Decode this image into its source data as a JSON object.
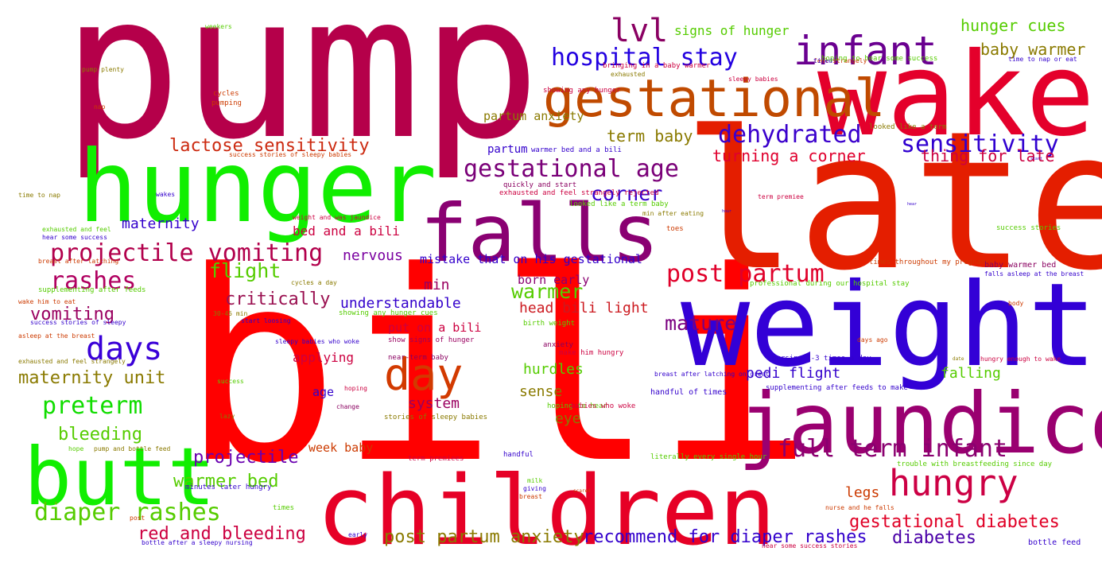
{
  "words": [
    {
      "text": "bili",
      "color": "#ff0000"
    },
    {
      "text": "pump",
      "color": "#b5004a"
    },
    {
      "text": "late",
      "color": "#e41e00"
    },
    {
      "text": "wake",
      "color": "#e4002b"
    },
    {
      "text": "weight",
      "color": "#3300d6"
    },
    {
      "text": "hunger",
      "color": "#11ee00"
    },
    {
      "text": "children",
      "color": "#e60026"
    },
    {
      "text": "jaundice",
      "color": "#9a0070"
    },
    {
      "text": "butt",
      "color": "#11ee00"
    },
    {
      "text": "falls",
      "color": "#8a0072"
    },
    {
      "text": "gestational",
      "color": "#c04a00"
    },
    {
      "text": "infant",
      "color": "#6a0090"
    },
    {
      "text": "day",
      "color": "#d23a00"
    },
    {
      "text": "days",
      "color": "#3a00d8"
    },
    {
      "text": "hungry",
      "color": "#cc0044"
    },
    {
      "text": "lvl",
      "color": "#8a0062"
    },
    {
      "text": "hospital stay",
      "color": "#2200e0"
    },
    {
      "text": "gestational age",
      "color": "#7a0078"
    },
    {
      "text": "dehydrated",
      "color": "#3a00cc"
    },
    {
      "text": "sensitivity",
      "color": "#3000d0"
    },
    {
      "text": "projectile vomiting",
      "color": "#b2004c"
    },
    {
      "text": "post partum",
      "color": "#e0002a"
    },
    {
      "text": "full term infant",
      "color": "#8a0070"
    },
    {
      "text": "diaper rashes",
      "color": "#55cc00"
    },
    {
      "text": "rashes",
      "color": "#b00060"
    },
    {
      "text": "preterm",
      "color": "#11dd00"
    },
    {
      "text": "corner",
      "color": "#3300cc"
    },
    {
      "text": "flight",
      "color": "#55cc00"
    },
    {
      "text": "mature",
      "color": "#7a0080"
    },
    {
      "text": "warmer",
      "color": "#55cc00"
    },
    {
      "text": "critically",
      "color": "#9a1050"
    },
    {
      "text": "gestational diabetes",
      "color": "#e00026"
    },
    {
      "text": "red and bleeding",
      "color": "#cc0040"
    },
    {
      "text": "diabetes",
      "color": "#4a00a8"
    },
    {
      "text": "maternity unit",
      "color": "#8a7a00"
    },
    {
      "text": "vomiting",
      "color": "#9a0060"
    },
    {
      "text": "bleeding",
      "color": "#55cc00"
    },
    {
      "text": "projectile",
      "color": "#6a00b0"
    },
    {
      "text": "warmer bed",
      "color": "#55cc00"
    },
    {
      "text": "post partum anxiety",
      "color": "#8a7a00"
    },
    {
      "text": "recommend for diaper rashes",
      "color": "#3300cc"
    },
    {
      "text": "lactose sensitivity",
      "color": "#cc2a10"
    },
    {
      "text": "term baby",
      "color": "#8a7a00"
    },
    {
      "text": "turning a corner",
      "color": "#e0002e"
    },
    {
      "text": "thing for late",
      "color": "#cc0040"
    },
    {
      "text": "hunger cues",
      "color": "#55cc00"
    },
    {
      "text": "baby warmer",
      "color": "#8a7a00"
    },
    {
      "text": "signs of hunger",
      "color": "#55cc00"
    },
    {
      "text": "maternity",
      "color": "#3300cc"
    },
    {
      "text": "nervous",
      "color": "#7a00a0"
    },
    {
      "text": "min",
      "color": "#9a0060"
    },
    {
      "text": "understandable",
      "color": "#3300cc"
    },
    {
      "text": "head bili light",
      "color": "#cc1a20"
    },
    {
      "text": "hurdles",
      "color": "#55cc00"
    },
    {
      "text": "sense",
      "color": "#8a7a00"
    },
    {
      "text": "system",
      "color": "#9a0060"
    },
    {
      "text": "eye",
      "color": "#8a7a00"
    },
    {
      "text": "legs",
      "color": "#cc3a00"
    },
    {
      "text": "falling",
      "color": "#55cc00"
    },
    {
      "text": "pedi flight",
      "color": "#3300cc"
    },
    {
      "text": "bed and a bili",
      "color": "#cc0040"
    },
    {
      "text": "mistake that on his gestational",
      "color": "#3300cc"
    },
    {
      "text": "born early",
      "color": "#8a0070"
    },
    {
      "text": "applying",
      "color": "#cc0040"
    },
    {
      "text": "put on a bili",
      "color": "#cc0040"
    },
    {
      "text": "age",
      "color": "#3300cc"
    },
    {
      "text": "week baby",
      "color": "#cc3a00"
    },
    {
      "text": "partum anxiety",
      "color": "#8a7a00"
    },
    {
      "text": "partum",
      "color": "#3300cc"
    },
    {
      "text": "pump plenty",
      "color": "#8a7a00"
    },
    {
      "text": "weekers",
      "color": "#55cc00"
    },
    {
      "text": "nap",
      "color": "#cc3a00"
    },
    {
      "text": "cycles",
      "color": "#cc3a00"
    },
    {
      "text": "pumping",
      "color": "#cc3a00"
    },
    {
      "text": "time to nap",
      "color": "#8a7a00"
    },
    {
      "text": "wakes",
      "color": "#3300cc"
    },
    {
      "text": "exhausted and feel",
      "color": "#55cc00"
    },
    {
      "text": "hear some success",
      "color": "#3300cc"
    },
    {
      "text": "breast after latching",
      "color": "#cc3a00"
    },
    {
      "text": "supplementing after feeds",
      "color": "#55cc00"
    },
    {
      "text": "wake him to eat",
      "color": "#cc3a00"
    },
    {
      "text": "success stories of sleepy",
      "color": "#3300cc"
    },
    {
      "text": "asleep at the breast",
      "color": "#cc3a00"
    },
    {
      "text": "exhausted and feel strangely",
      "color": "#8a7a00"
    },
    {
      "text": "hope",
      "color": "#55cc00"
    },
    {
      "text": "post",
      "color": "#cc3a00"
    },
    {
      "text": "success",
      "color": "#55cc00"
    },
    {
      "text": "lazy",
      "color": "#8a7a00"
    },
    {
      "text": "success stories of sleepy babies",
      "color": "#cc3a00"
    },
    {
      "text": "quickly and start",
      "color": "#8a0060"
    },
    {
      "text": "exhausted and feel strangely rejected",
      "color": "#cc0040"
    },
    {
      "text": "looked like a term baby",
      "color": "#55cc00"
    },
    {
      "text": "weight and was jaundice",
      "color": "#cc0040"
    },
    {
      "text": "cycles a day",
      "color": "#8a7a00"
    },
    {
      "text": "30-45 min",
      "color": "#8a7a00"
    },
    {
      "text": "start loosing",
      "color": "#3300cc"
    },
    {
      "text": "showing any hunger cues",
      "color": "#55cc00"
    },
    {
      "text": "sleepy babies who woke",
      "color": "#3300cc"
    },
    {
      "text": "show signs of hunger",
      "color": "#9a0060"
    },
    {
      "text": "birth weight",
      "color": "#55cc00"
    },
    {
      "text": "anxiety",
      "color": "#8a0060"
    },
    {
      "text": "make him hungry",
      "color": "#cc0040"
    },
    {
      "text": "near-term baby",
      "color": "#8a0060"
    },
    {
      "text": "hoping",
      "color": "#cc0040"
    },
    {
      "text": "change",
      "color": "#8a0060"
    },
    {
      "text": "hoping to hear",
      "color": "#55cc00"
    },
    {
      "text": "stories of sleepy babies",
      "color": "#8a7a00"
    },
    {
      "text": "babies who woke",
      "color": "#cc0040"
    },
    {
      "text": "minutes later hungry",
      "color": "#3300cc"
    },
    {
      "text": "times",
      "color": "#55cc00"
    },
    {
      "text": "bottle after a sleepy nursing",
      "color": "#3300cc"
    },
    {
      "text": "pump and bottle feed",
      "color": "#8a7a00"
    },
    {
      "text": "term premiees",
      "color": "#cc0040"
    },
    {
      "text": "handful",
      "color": "#3300cc"
    },
    {
      "text": "milk",
      "color": "#55cc00"
    },
    {
      "text": "giving",
      "color": "#3300cc"
    },
    {
      "text": "breast",
      "color": "#cc3a00"
    },
    {
      "text": "scared",
      "color": "#cc3a00"
    },
    {
      "text": "early",
      "color": "#3300cc"
    },
    {
      "text": "bringing in a baby warmer",
      "color": "#cc0040"
    },
    {
      "text": "exhausted",
      "color": "#8a7a00"
    },
    {
      "text": "sleepy babies",
      "color": "#cc0040"
    },
    {
      "text": "showing any hunger",
      "color": "#cc0040"
    },
    {
      "text": "feel strangely",
      "color": "#cc3a00"
    },
    {
      "text": "tired",
      "color": "#3300cc"
    },
    {
      "text": "hoping to hear some success",
      "color": "#55cc00"
    },
    {
      "text": "time to nap or eat",
      "color": "#3300cc"
    },
    {
      "text": "looked like a term",
      "color": "#8a7a00"
    },
    {
      "text": "warmer bed and a bili",
      "color": "#3300cc"
    },
    {
      "text": "start",
      "color": "#3300cc"
    },
    {
      "text": "term premiee",
      "color": "#cc0040"
    },
    {
      "text": "hear",
      "color": "#3300cc"
    },
    {
      "text": "hour",
      "color": "#3300cc"
    },
    {
      "text": "min after eating",
      "color": "#8a7a00"
    },
    {
      "text": "toes",
      "color": "#cc3a00"
    },
    {
      "text": "success stories",
      "color": "#55cc00"
    },
    {
      "text": "times throughout my pregnancy",
      "color": "#cc3a00"
    },
    {
      "text": "baby warmer bed",
      "color": "#8a0060"
    },
    {
      "text": "falls asleep at the breast",
      "color": "#3300cc"
    },
    {
      "text": "professional during our hospital stay",
      "color": "#55cc00"
    },
    {
      "text": "body",
      "color": "#cc3a00"
    },
    {
      "text": "days ago",
      "color": "#cc3a00"
    },
    {
      "text": "nursing 1-3 times a day",
      "color": "#3300cc"
    },
    {
      "text": "date",
      "color": "#8a7a00"
    },
    {
      "text": "hungry enough to wake",
      "color": "#cc0040"
    },
    {
      "text": "breast after latching on great",
      "color": "#3300cc"
    },
    {
      "text": "handful of times",
      "color": "#3300cc"
    },
    {
      "text": "supplementing after feeds to make",
      "color": "#3300cc"
    },
    {
      "text": "literally every single hour",
      "color": "#55cc00"
    },
    {
      "text": "trouble with breastfeeding since day",
      "color": "#55cc00"
    },
    {
      "text": "nurse and he falls",
      "color": "#cc3a00"
    },
    {
      "text": "hear some success stories",
      "color": "#cc0040"
    },
    {
      "text": "bottle feed",
      "color": "#3300cc"
    }
  ]
}
